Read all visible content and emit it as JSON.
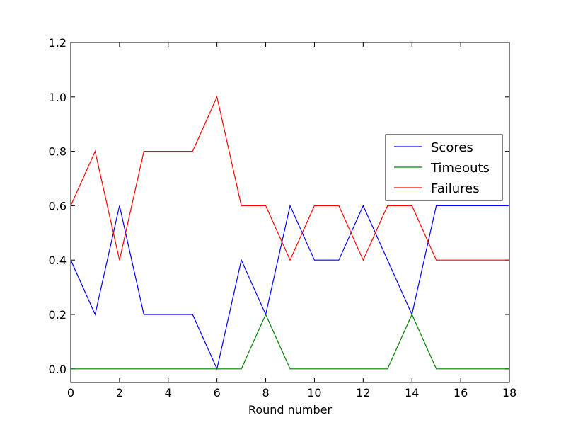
{
  "chart_data": {
    "type": "line",
    "title": "",
    "xlabel": "Round number",
    "ylabel": "",
    "xlim": [
      0,
      18
    ],
    "ylim": [
      -0.05,
      1.2
    ],
    "x_ticks": [
      0,
      2,
      4,
      6,
      8,
      10,
      12,
      14,
      16,
      18
    ],
    "y_ticks": [
      0.0,
      0.2,
      0.4,
      0.6,
      0.8,
      1.0,
      1.2
    ],
    "x_tick_labels": [
      "0",
      "2",
      "4",
      "6",
      "8",
      "10",
      "12",
      "14",
      "16",
      "18"
    ],
    "y_tick_labels": [
      "0.0",
      "0.2",
      "0.4",
      "0.6",
      "0.8",
      "1.0",
      "1.2"
    ],
    "grid": false,
    "legend_position": "center-right",
    "x": [
      0,
      1,
      2,
      3,
      4,
      5,
      6,
      7,
      8,
      9,
      10,
      11,
      12,
      13,
      14,
      15,
      16,
      17,
      18
    ],
    "series": [
      {
        "name": "Scores",
        "color": "#0000ff",
        "values": [
          0.4,
          0.2,
          0.6,
          0.2,
          0.2,
          0.2,
          0.0,
          0.4,
          0.2,
          0.6,
          0.4,
          0.4,
          0.6,
          0.4,
          0.2,
          0.6,
          0.6,
          0.6,
          0.6
        ]
      },
      {
        "name": "Timeouts",
        "color": "#008000",
        "values": [
          0.0,
          0.0,
          0.0,
          0.0,
          0.0,
          0.0,
          0.0,
          0.0,
          0.2,
          0.0,
          0.0,
          0.0,
          0.0,
          0.0,
          0.2,
          0.0,
          0.0,
          0.0,
          0.0
        ]
      },
      {
        "name": "Failures",
        "color": "#ff0000",
        "values": [
          0.6,
          0.8,
          0.4,
          0.8,
          0.8,
          0.8,
          1.0,
          0.6,
          0.6,
          0.4,
          0.6,
          0.6,
          0.4,
          0.6,
          0.6,
          0.4,
          0.4,
          0.4,
          0.4
        ]
      }
    ]
  }
}
